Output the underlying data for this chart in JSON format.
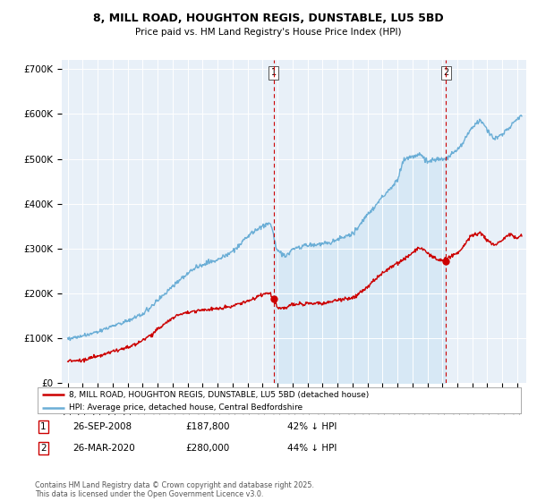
{
  "title": "8, MILL ROAD, HOUGHTON REGIS, DUNSTABLE, LU5 5BD",
  "subtitle": "Price paid vs. HM Land Registry's House Price Index (HPI)",
  "ylabel_ticks": [
    "£0",
    "£100K",
    "£200K",
    "£300K",
    "£400K",
    "£500K",
    "£600K",
    "£700K"
  ],
  "ytick_values": [
    0,
    100000,
    200000,
    300000,
    400000,
    500000,
    600000,
    700000
  ],
  "ylim": [
    0,
    720000
  ],
  "xlim_start": 1994.6,
  "xlim_end": 2025.6,
  "hpi_color": "#6baed6",
  "hpi_fill_color": "#d6e8f5",
  "price_color": "#CC0000",
  "marker1_x": 2008.73,
  "marker2_x": 2020.24,
  "legend_line1": "8, MILL ROAD, HOUGHTON REGIS, DUNSTABLE, LU5 5BD (detached house)",
  "legend_line2": "HPI: Average price, detached house, Central Bedfordshire",
  "marker1_date": "26-SEP-2008",
  "marker1_price": "£187,800",
  "marker1_note": "42% ↓ HPI",
  "marker2_date": "26-MAR-2020",
  "marker2_price": "£280,000",
  "marker2_note": "44% ↓ HPI",
  "footer": "Contains HM Land Registry data © Crown copyright and database right 2025.\nThis data is licensed under the Open Government Licence v3.0."
}
